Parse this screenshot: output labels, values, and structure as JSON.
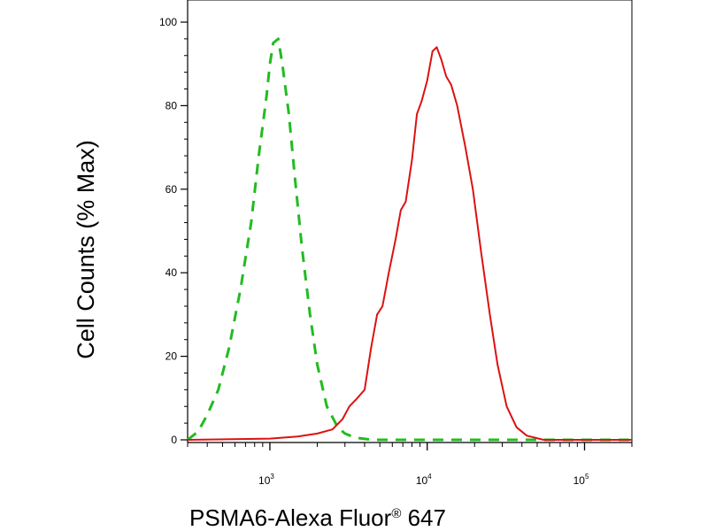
{
  "chart_data": {
    "type": "line",
    "xlabel": "PSMA6-Alexa Fluor",
    "xlabel_mark": "®",
    "xlabel_suffix": " 647",
    "ylabel": "Cell Counts (% Max)",
    "x_scale": "log",
    "xlim": [
      300,
      200000
    ],
    "ylim": [
      0,
      100
    ],
    "x_ticks": [
      {
        "value": 1000,
        "base": "10",
        "exp": "3"
      },
      {
        "value": 10000,
        "base": "10",
        "exp": "4"
      },
      {
        "value": 100000,
        "base": "10",
        "exp": "5"
      }
    ],
    "y_ticks": [
      0,
      20,
      40,
      60,
      80,
      100
    ],
    "grid": false,
    "series": [
      {
        "color": "#22bb22",
        "style": "dashed",
        "points": [
          [
            300,
            0
          ],
          [
            350,
            2
          ],
          [
            400,
            6
          ],
          [
            470,
            12
          ],
          [
            550,
            22
          ],
          [
            650,
            36
          ],
          [
            760,
            52
          ],
          [
            850,
            68
          ],
          [
            950,
            82
          ],
          [
            1000,
            90
          ],
          [
            1050,
            95
          ],
          [
            1130,
            96
          ],
          [
            1200,
            90
          ],
          [
            1320,
            78
          ],
          [
            1450,
            62
          ],
          [
            1600,
            46
          ],
          [
            1800,
            30
          ],
          [
            2000,
            18
          ],
          [
            2300,
            8
          ],
          [
            2700,
            3
          ],
          [
            3000,
            1.5
          ],
          [
            3500,
            0.5
          ],
          [
            4500,
            0
          ],
          [
            10000,
            0
          ],
          [
            50000,
            0
          ],
          [
            200000,
            0
          ]
        ]
      },
      {
        "color": "#dd1111",
        "style": "solid",
        "points": [
          [
            300,
            0
          ],
          [
            1000,
            0.3
          ],
          [
            1500,
            0.8
          ],
          [
            2000,
            1.5
          ],
          [
            2500,
            2.5
          ],
          [
            2900,
            5
          ],
          [
            3200,
            8
          ],
          [
            3600,
            10
          ],
          [
            4000,
            12
          ],
          [
            4400,
            22
          ],
          [
            4800,
            30
          ],
          [
            5200,
            32
          ],
          [
            5700,
            40
          ],
          [
            6300,
            48
          ],
          [
            6800,
            55
          ],
          [
            7300,
            57
          ],
          [
            8000,
            67
          ],
          [
            8600,
            78
          ],
          [
            9200,
            81
          ],
          [
            10000,
            86
          ],
          [
            10800,
            93
          ],
          [
            11500,
            94
          ],
          [
            12300,
            91
          ],
          [
            13200,
            87
          ],
          [
            14200,
            85
          ],
          [
            15500,
            80
          ],
          [
            17500,
            70
          ],
          [
            19500,
            60
          ],
          [
            22000,
            45
          ],
          [
            25000,
            30
          ],
          [
            28000,
            18
          ],
          [
            32000,
            8
          ],
          [
            37000,
            3
          ],
          [
            43000,
            1
          ],
          [
            55000,
            0
          ],
          [
            200000,
            0
          ]
        ]
      }
    ]
  }
}
